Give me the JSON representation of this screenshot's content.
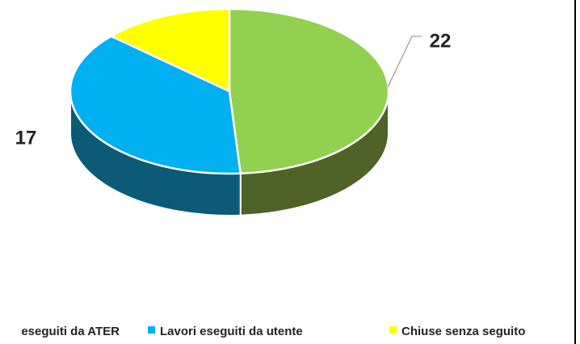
{
  "chart_data": {
    "type": "pie3d",
    "categories": [
      "eseguiti da ATER",
      "Lavori eseguiti da utente",
      "Chiuse senza seguito"
    ],
    "values": [
      22,
      17,
      6
    ],
    "value_labels": [
      "22",
      "17",
      null
    ],
    "colors": [
      "#92d050",
      "#00b0f0",
      "#ffff00"
    ],
    "side_colors": [
      "#4f6228",
      "#0b5a78",
      "#8a8a00"
    ],
    "legend": "bottom"
  }
}
